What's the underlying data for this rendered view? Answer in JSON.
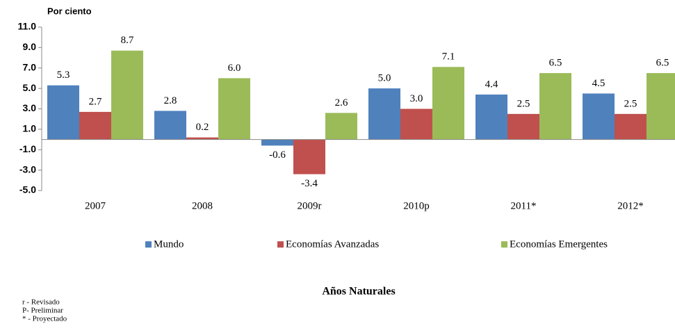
{
  "chart_data": {
    "type": "bar",
    "y_label": "Por ciento",
    "x_label": "Años Naturales",
    "categories": [
      "2007",
      "2008",
      "2009r",
      "2010p",
      "2011*",
      "2012*"
    ],
    "series": [
      {
        "name": "Mundo",
        "color": "#4f81bd",
        "values": [
          5.3,
          2.8,
          -0.6,
          5.0,
          4.4,
          4.5
        ],
        "value_labels": [
          "5.3",
          "2.8",
          "-0.6",
          "5.0",
          "4.4",
          "4.5"
        ]
      },
      {
        "name": "Economías Avanzadas",
        "color": "#c0504d",
        "values": [
          2.7,
          0.2,
          -3.4,
          3.0,
          2.5,
          2.5
        ],
        "value_labels": [
          "2.7",
          "0.2",
          "-3.4",
          "3.0",
          "2.5",
          "2.5"
        ]
      },
      {
        "name": "Economías Emergentes",
        "color": "#9bbb59",
        "values": [
          8.7,
          6.0,
          2.6,
          7.1,
          6.5,
          6.5
        ],
        "value_labels": [
          "8.7",
          "6.0",
          "2.6",
          "7.1",
          "6.5",
          "6.5"
        ]
      }
    ],
    "ylim": [
      -5,
      11
    ],
    "yticks": [
      {
        "value": -5,
        "label": "-5.0"
      },
      {
        "value": -3,
        "label": "-3.0"
      },
      {
        "value": -1,
        "label": "-1.0"
      },
      {
        "value": 1,
        "label": "1.0"
      },
      {
        "value": 3,
        "label": "3.0"
      },
      {
        "value": 5,
        "label": "5.0"
      },
      {
        "value": 7,
        "label": "7.0"
      },
      {
        "value": 9,
        "label": "9.0"
      },
      {
        "value": 11,
        "label": "11.0"
      }
    ],
    "legend": "bottom",
    "notes": [
      "r - Revisado",
      "P- Preliminar",
      "* - Proyectado"
    ]
  }
}
